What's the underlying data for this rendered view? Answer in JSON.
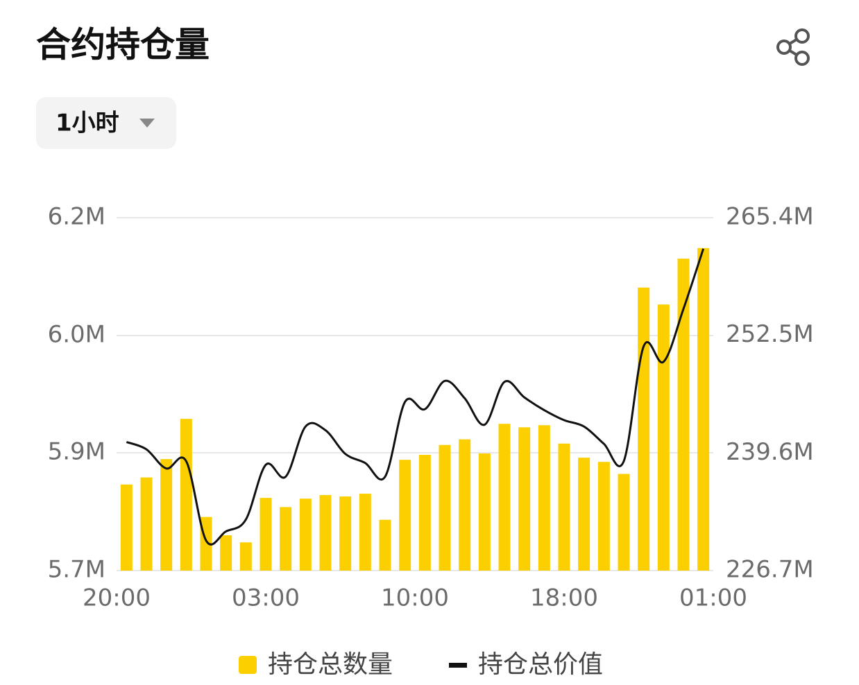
{
  "chart_data": {
    "type": "bar-line",
    "title": "合约持仓量",
    "period": "1小时",
    "xticks": [
      "20:00",
      "03:00",
      "10:00",
      "18:00",
      "01:00"
    ],
    "series": [
      {
        "name": "持仓总数量",
        "type": "bar",
        "color": "#fcd000",
        "values": [
          5.822,
          5.832,
          5.858,
          5.915,
          5.776,
          5.75,
          5.74,
          5.803,
          5.79,
          5.802,
          5.807,
          5.805,
          5.809,
          5.772,
          5.857,
          5.864,
          5.878,
          5.886,
          5.866,
          5.908,
          5.903,
          5.906,
          5.88,
          5.86,
          5.854,
          5.837,
          6.101,
          6.077,
          6.142,
          6.157
        ]
      },
      {
        "name": "持仓总价值",
        "type": "line",
        "color": "#111111",
        "axis": "y2",
        "values": [
          240.8,
          240.0,
          237.9,
          238.7,
          230.0,
          231.0,
          232.3,
          238.3,
          237.0,
          242.5,
          242.1,
          239.5,
          238.5,
          237.0,
          245.2,
          244.4,
          247.5,
          245.6,
          242.7,
          247.4,
          245.7,
          244.3,
          243.2,
          242.5,
          240.6,
          238.7,
          251.3,
          249.6,
          255.4,
          262.0
        ]
      }
    ],
    "ylim": [
      5.7,
      6.2
    ],
    "yticks": [
      {
        "value": 5.7,
        "label": "5.7M"
      },
      {
        "value": 5.867,
        "label": "5.9M"
      },
      {
        "value": 6.033,
        "label": "6.0M"
      },
      {
        "value": 6.2,
        "label": "6.2M"
      }
    ],
    "y2lim": [
      226.7,
      265.4
    ],
    "y2ticks": [
      {
        "value": 226.7,
        "label": "226.7M"
      },
      {
        "value": 239.6,
        "label": "239.6M"
      },
      {
        "value": 252.5,
        "label": "252.5M"
      },
      {
        "value": 265.4,
        "label": "265.4M"
      }
    ],
    "grid": true
  }
}
